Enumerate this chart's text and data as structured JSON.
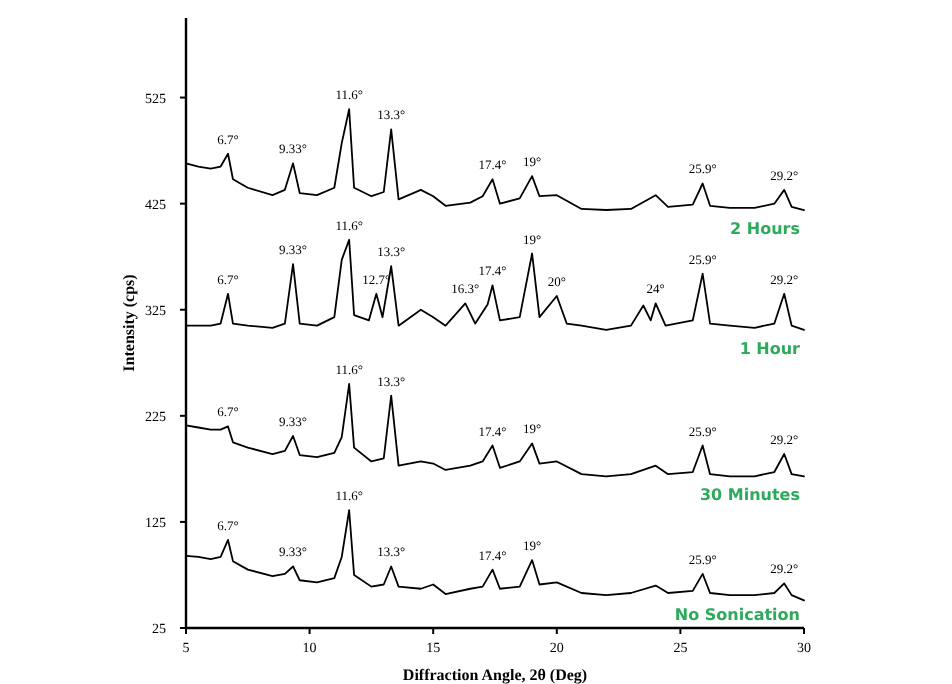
{
  "chart_data": {
    "type": "line",
    "xlabel": "Diffraction Angle, 2θ (Deg)",
    "ylabel": "Intensity (cps)",
    "xlim": [
      5,
      30
    ],
    "xticks": [
      5,
      10,
      15,
      20,
      25,
      30
    ],
    "ylim": [
      25,
      600
    ],
    "yticks": [
      25,
      125,
      225,
      325,
      425,
      525
    ],
    "grid": false,
    "marker": "none",
    "line_style": "solid",
    "series": [
      {
        "name": "No Sonication",
        "color": "#000000",
        "x": [
          5,
          5.5,
          6,
          6.4,
          6.7,
          6.9,
          7.5,
          8.5,
          9.0,
          9.33,
          9.6,
          10.3,
          11.0,
          11.3,
          11.6,
          11.8,
          12.5,
          13.0,
          13.3,
          13.6,
          14.5,
          15,
          15.5,
          16.5,
          17.0,
          17.4,
          17.7,
          18.5,
          19,
          19.3,
          20,
          21,
          22,
          23,
          24,
          24.5,
          25.5,
          25.9,
          26.2,
          27,
          28,
          28.8,
          29.2,
          29.5,
          30
        ],
        "values": [
          93,
          92,
          90,
          92,
          108,
          88,
          80,
          74,
          76,
          83,
          70,
          68,
          72,
          92,
          136,
          75,
          64,
          66,
          83,
          64,
          62,
          66,
          57,
          62,
          64,
          80,
          62,
          64,
          89,
          66,
          68,
          58,
          56,
          58,
          65,
          58,
          60,
          76,
          58,
          56,
          56,
          58,
          67,
          56,
          51
        ]
      },
      {
        "name": "30 Minutes",
        "color": "#000000",
        "x": [
          5,
          5.5,
          6,
          6.4,
          6.7,
          6.9,
          7.5,
          8.5,
          9.0,
          9.33,
          9.6,
          10.3,
          11.0,
          11.3,
          11.6,
          11.8,
          12.5,
          13.0,
          13.3,
          13.6,
          14.5,
          15,
          15.5,
          16.5,
          17.0,
          17.4,
          17.7,
          18.5,
          19,
          19.3,
          20,
          21,
          22,
          23,
          24,
          24.5,
          25.5,
          25.9,
          26.2,
          27,
          28,
          28.8,
          29.2,
          29.5,
          30
        ],
        "values": [
          216,
          214,
          212,
          212,
          215,
          200,
          195,
          189,
          192,
          206,
          188,
          186,
          190,
          205,
          255,
          195,
          182,
          185,
          244,
          178,
          182,
          180,
          174,
          178,
          182,
          197,
          176,
          182,
          199,
          180,
          182,
          170,
          168,
          170,
          178,
          170,
          172,
          197,
          170,
          168,
          168,
          172,
          189,
          170,
          168
        ]
      },
      {
        "name": "1 Hour",
        "color": "#000000",
        "x": [
          5,
          6,
          6.4,
          6.7,
          6.9,
          7.5,
          8.5,
          9.0,
          9.33,
          9.6,
          10.3,
          11.0,
          11.3,
          11.6,
          11.8,
          12.4,
          12.7,
          12.95,
          13.3,
          13.6,
          14.5,
          15,
          15.5,
          16.3,
          16.7,
          17.2,
          17.4,
          17.7,
          18.5,
          19,
          19.3,
          20,
          20.4,
          21,
          22,
          23,
          23.5,
          23.8,
          24,
          24.4,
          25.5,
          25.9,
          26.2,
          27,
          28,
          28.8,
          29.2,
          29.5,
          30
        ],
        "values": [
          310,
          310,
          312,
          340,
          312,
          310,
          308,
          312,
          368,
          312,
          310,
          318,
          372,
          391,
          320,
          315,
          340,
          318,
          366,
          310,
          325,
          318,
          310,
          331,
          312,
          330,
          348,
          315,
          318,
          378,
          318,
          338,
          312,
          310,
          306,
          310,
          329,
          315,
          331,
          310,
          315,
          359,
          312,
          310,
          308,
          312,
          340,
          310,
          306
        ]
      },
      {
        "name": "2 Hours",
        "color": "#000000",
        "x": [
          5,
          5.5,
          6,
          6.4,
          6.7,
          6.9,
          7.5,
          8.5,
          9.0,
          9.33,
          9.6,
          10.3,
          11.0,
          11.3,
          11.6,
          11.8,
          12.5,
          13.0,
          13.3,
          13.6,
          14.5,
          15,
          15.5,
          16.5,
          17.0,
          17.4,
          17.7,
          18.5,
          19,
          19.3,
          20,
          21,
          22,
          23,
          24,
          24.5,
          25.5,
          25.9,
          26.2,
          27,
          28,
          28.8,
          29.2,
          29.5,
          30
        ],
        "values": [
          463,
          460,
          458,
          460,
          472,
          448,
          440,
          433,
          438,
          463,
          435,
          433,
          440,
          482,
          514,
          440,
          432,
          436,
          495,
          429,
          438,
          432,
          423,
          426,
          432,
          448,
          425,
          430,
          451,
          432,
          433,
          420,
          419,
          420,
          433,
          422,
          424,
          444,
          423,
          421,
          421,
          425,
          438,
          422,
          419
        ]
      }
    ],
    "annotations": [
      {
        "text": "6.7°",
        "x": 6.7,
        "y": 472
      },
      {
        "text": "9.33°",
        "x": 9.33,
        "y": 463
      },
      {
        "text": "11.6°",
        "x": 11.6,
        "y": 514
      },
      {
        "text": "13.3°",
        "x": 13.3,
        "y": 495
      },
      {
        "text": "17.4°",
        "x": 17.4,
        "y": 448
      },
      {
        "text": "19°",
        "x": 19,
        "y": 451
      },
      {
        "text": "25.9°",
        "x": 25.9,
        "y": 444
      },
      {
        "text": "29.2°",
        "x": 29.2,
        "y": 438
      },
      {
        "text": "6.7°",
        "x": 6.7,
        "y": 340
      },
      {
        "text": "9.33°",
        "x": 9.33,
        "y": 368
      },
      {
        "text": "11.6°",
        "x": 11.6,
        "y": 391
      },
      {
        "text": "12.7°",
        "x": 12.7,
        "y": 340
      },
      {
        "text": "13.3°",
        "x": 13.3,
        "y": 366
      },
      {
        "text": "16.3°",
        "x": 16.3,
        "y": 331
      },
      {
        "text": "17.4°",
        "x": 17.4,
        "y": 348
      },
      {
        "text": "19°",
        "x": 19,
        "y": 378
      },
      {
        "text": "20°",
        "x": 20,
        "y": 338
      },
      {
        "text": "24°",
        "x": 24,
        "y": 331
      },
      {
        "text": "25.9°",
        "x": 25.9,
        "y": 359
      },
      {
        "text": "29.2°",
        "x": 29.2,
        "y": 340
      },
      {
        "text": "6.7°",
        "x": 6.7,
        "y": 215
      },
      {
        "text": "9.33°",
        "x": 9.33,
        "y": 206
      },
      {
        "text": "11.6°",
        "x": 11.6,
        "y": 255
      },
      {
        "text": "13.3°",
        "x": 13.3,
        "y": 244
      },
      {
        "text": "17.4°",
        "x": 17.4,
        "y": 197
      },
      {
        "text": "19°",
        "x": 19,
        "y": 199
      },
      {
        "text": "25.9°",
        "x": 25.9,
        "y": 197
      },
      {
        "text": "29.2°",
        "x": 29.2,
        "y": 189
      },
      {
        "text": "6.7°",
        "x": 6.7,
        "y": 108
      },
      {
        "text": "9.33°",
        "x": 9.33,
        "y": 83
      },
      {
        "text": "11.6°",
        "x": 11.6,
        "y": 136
      },
      {
        "text": "13.3°",
        "x": 13.3,
        "y": 83
      },
      {
        "text": "17.4°",
        "x": 17.4,
        "y": 80
      },
      {
        "text": "19°",
        "x": 19,
        "y": 89
      },
      {
        "text": "25.9°",
        "x": 25.9,
        "y": 76
      },
      {
        "text": "29.2°",
        "x": 29.2,
        "y": 67
      }
    ]
  }
}
